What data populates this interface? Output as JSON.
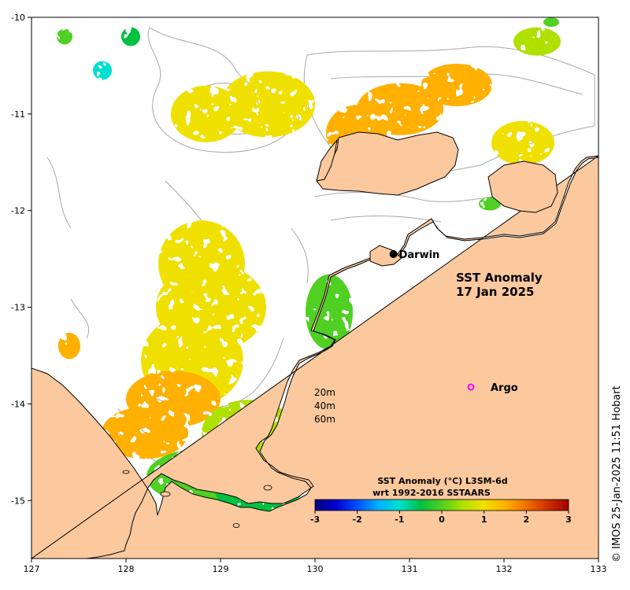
{
  "chart_data": {
    "type": "heatmap",
    "title": "SST Anomaly",
    "date": "17 Jan 2025",
    "xlim": [
      127,
      133
    ],
    "ylim": [
      -15.6,
      -10
    ],
    "x_ticks": [
      127,
      128,
      129,
      130,
      131,
      132,
      133
    ],
    "y_ticks": [
      -10,
      -11,
      -12,
      -13,
      -14,
      -15
    ],
    "places": [
      {
        "name": "Darwin",
        "lon": 130.83,
        "lat": -12.45,
        "marker": "filled-circle",
        "color": "#000000"
      },
      {
        "name": "Argo",
        "lon": 131.5,
        "lat": -13.8,
        "marker": "open-circle",
        "color": "#ff00ff"
      }
    ],
    "contour_labels": [
      "20m",
      "40m",
      "60m"
    ],
    "colorbar": {
      "title_line1": "SST Anomaly (°C) L3SM-6d",
      "title_line2": "wrt 1992-2016 SSTAARS",
      "min": -3,
      "max": 3,
      "ticks": [
        "-3",
        "-2",
        "-1",
        "0",
        "1",
        "2",
        "3"
      ],
      "colors": [
        "#00007f",
        "#0000d0",
        "#0050ff",
        "#00b0ff",
        "#00e0d0",
        "#00c040",
        "#50d020",
        "#b0e000",
        "#f0e000",
        "#ffb000",
        "#f07000",
        "#d03000",
        "#a00000"
      ]
    },
    "anomaly_patches": [
      {
        "lon": 128.9,
        "lat": -13.0,
        "value": 0.9
      },
      {
        "lon": 128.8,
        "lat": -12.55,
        "value": 0.85
      },
      {
        "lon": 128.7,
        "lat": -13.55,
        "value": 1.0
      },
      {
        "lon": 128.5,
        "lat": -13.95,
        "value": 1.55
      },
      {
        "lon": 128.2,
        "lat": -14.3,
        "value": 1.6
      },
      {
        "lon": 129.3,
        "lat": -14.3,
        "value": 0.55
      },
      {
        "lon": 128.8,
        "lat": -14.75,
        "value": 0.1
      },
      {
        "lon": 129.4,
        "lat": -14.9,
        "value": -0.3
      },
      {
        "lon": 130.15,
        "lat": -13.05,
        "value": 0.1
      },
      {
        "lon": 130.9,
        "lat": -10.95,
        "value": 1.5
      },
      {
        "lon": 130.45,
        "lat": -11.2,
        "value": 1.7
      },
      {
        "lon": 131.5,
        "lat": -10.7,
        "value": 1.3
      },
      {
        "lon": 129.5,
        "lat": -10.9,
        "value": 0.9
      },
      {
        "lon": 128.85,
        "lat": -11.0,
        "value": 1.2
      },
      {
        "lon": 132.35,
        "lat": -10.25,
        "value": 0.7
      },
      {
        "lon": 132.2,
        "lat": -11.3,
        "value": 1.1
      },
      {
        "lon": 127.4,
        "lat": -13.4,
        "value": 1.6
      },
      {
        "lon": 127.35,
        "lat": -10.2,
        "value": 0.0
      },
      {
        "lon": 127.75,
        "lat": -10.55,
        "value": -1.2
      },
      {
        "lon": 128.05,
        "lat": -10.2,
        "value": -0.3
      },
      {
        "lon": 132.5,
        "lat": -10.05,
        "value": 0.0
      },
      {
        "lon": 131.85,
        "lat": -11.93,
        "value": 0.1
      }
    ]
  },
  "credit": "© IMOS 25-Jan-2025 11:51 Hobart",
  "colors": {
    "land": "#fcc99e",
    "ocean": "#ffffff",
    "coastline": "#000000",
    "contours": "#a8a8a8"
  }
}
